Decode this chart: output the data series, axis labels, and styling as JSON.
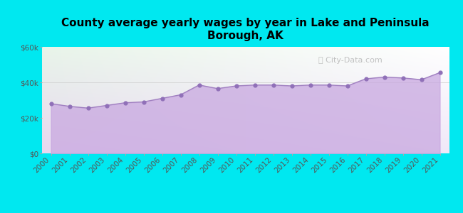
{
  "title": "County average yearly wages by year in Lake and Peninsula\nBorough, AK",
  "years": [
    2000,
    2001,
    2002,
    2003,
    2004,
    2005,
    2006,
    2007,
    2008,
    2009,
    2010,
    2011,
    2012,
    2013,
    2014,
    2015,
    2016,
    2017,
    2018,
    2019,
    2020,
    2021
  ],
  "wages": [
    28000,
    26500,
    25500,
    27000,
    28500,
    29000,
    31000,
    33000,
    38500,
    36500,
    38000,
    38500,
    38500,
    38000,
    38500,
    38500,
    38000,
    42000,
    43000,
    42500,
    41500,
    45500
  ],
  "background_color": "#00e8f0",
  "plot_bg_top_left": "#e8f5e9",
  "plot_bg_top_right": "#ffffff",
  "plot_bg_bottom": "#e8d8f0",
  "fill_color": "#c8a8e0",
  "fill_alpha": 0.75,
  "line_color": "#a080c0",
  "marker_color": "#9070b8",
  "ylim": [
    0,
    60000
  ],
  "yticks": [
    0,
    20000,
    40000,
    60000
  ],
  "ytick_labels": [
    "$0",
    "$20k",
    "$40k",
    "$60k"
  ],
  "watermark": "City-Data.com",
  "title_fontsize": 11,
  "tick_fontsize": 7.5
}
